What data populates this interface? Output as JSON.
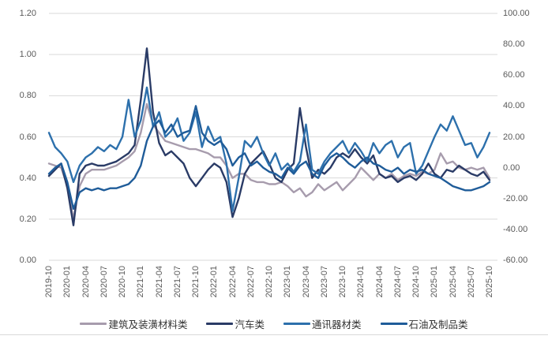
{
  "chart": {
    "grid_color": "#D9D9D9",
    "axis_label_color": "#595959",
    "legend_text_color": "#333333",
    "background": "#ffffff",
    "bottom_border_color": "#D9D9D9"
  },
  "chart_data": {
    "type": "line",
    "title": "",
    "xlabel": "",
    "ylabel_left": "",
    "ylabel_right": "",
    "grid": true,
    "legend_position": "bottom",
    "x_tick_every": 3,
    "left_axis": {
      "min": 0,
      "max": 1.2,
      "step": 0.2,
      "labels": [
        "0.00",
        "0.20",
        "0.40",
        "0.60",
        "0.80",
        "1.00",
        "1.20"
      ]
    },
    "right_axis": {
      "min": -60,
      "max": 100,
      "step": 20,
      "labels": [
        "-60.00",
        "-40.00",
        "-20.00",
        "0.00",
        "20.00",
        "40.00",
        "60.00",
        "80.00",
        "100.00"
      ]
    },
    "x": [
      "2019-10",
      "2019-11",
      "2019-12",
      "2020-01",
      "2020-02",
      "2020-03",
      "2020-04",
      "2020-05",
      "2020-06",
      "2020-07",
      "2020-08",
      "2020-09",
      "2020-10",
      "2020-11",
      "2020-12",
      "2021-01",
      "2021-02",
      "2021-03",
      "2021-04",
      "2021-05",
      "2021-06",
      "2021-07",
      "2021-08",
      "2021-09",
      "2021-10",
      "2021-11",
      "2021-12",
      "2022-01",
      "2022-02",
      "2022-03",
      "2022-04",
      "2022-05",
      "2022-06",
      "2022-07",
      "2022-08",
      "2022-09",
      "2022-10",
      "2022-11",
      "2022-12",
      "2023-01",
      "2023-02",
      "2023-03",
      "2023-04",
      "2023-05",
      "2023-06",
      "2023-07",
      "2023-08",
      "2023-09",
      "2023-10",
      "2023-11",
      "2023-12",
      "2024-01",
      "2024-02",
      "2024-03",
      "2024-04",
      "2024-05",
      "2024-06",
      "2024-07",
      "2024-08",
      "2024-09",
      "2024-10",
      "2024-11",
      "2024-12",
      "2025-01",
      "2025-02",
      "2025-03",
      "2025-04",
      "2025-05",
      "2025-06",
      "2025-07",
      "2025-08",
      "2025-09",
      "2025-10"
    ],
    "series": [
      {
        "name": "建筑及装潢材料类",
        "color": "#A79CAD",
        "values": [
          0.47,
          0.46,
          0.45,
          0.36,
          0.2,
          0.36,
          0.42,
          0.44,
          0.44,
          0.44,
          0.45,
          0.46,
          0.48,
          0.5,
          0.53,
          0.62,
          0.76,
          0.66,
          0.62,
          0.58,
          0.57,
          0.56,
          0.55,
          0.54,
          0.54,
          0.53,
          0.52,
          0.5,
          0.5,
          0.46,
          0.4,
          0.42,
          0.42,
          0.39,
          0.38,
          0.38,
          0.37,
          0.37,
          0.38,
          0.36,
          0.33,
          0.35,
          0.31,
          0.33,
          0.37,
          0.34,
          0.36,
          0.38,
          0.34,
          0.37,
          0.4,
          0.45,
          0.42,
          0.39,
          0.42,
          0.4,
          0.42,
          0.39,
          0.41,
          0.42,
          0.41,
          0.43,
          0.42,
          0.44,
          0.52,
          0.47,
          0.48,
          0.45,
          0.44,
          0.45,
          0.44,
          0.45,
          0.4
        ]
      },
      {
        "name": "汽车类",
        "color": "#2A3B66",
        "values": [
          0.41,
          0.44,
          0.47,
          0.35,
          0.17,
          0.42,
          0.46,
          0.47,
          0.46,
          0.46,
          0.47,
          0.48,
          0.5,
          0.52,
          0.56,
          0.78,
          1.03,
          0.72,
          0.57,
          0.51,
          0.53,
          0.5,
          0.47,
          0.4,
          0.36,
          0.4,
          0.44,
          0.47,
          0.45,
          0.38,
          0.21,
          0.3,
          0.42,
          0.47,
          0.5,
          0.53,
          0.47,
          0.4,
          0.38,
          0.44,
          0.47,
          0.74,
          0.55,
          0.4,
          0.44,
          0.42,
          0.45,
          0.5,
          0.52,
          0.5,
          0.54,
          0.5,
          0.47,
          0.51,
          0.42,
          0.4,
          0.41,
          0.38,
          0.4,
          0.41,
          0.39,
          0.42,
          0.47,
          0.42,
          0.4,
          0.44,
          0.43,
          0.46,
          0.44,
          0.42,
          0.41,
          0.43,
          0.39
        ]
      },
      {
        "name": "通讯器材类",
        "color": "#2D70AC",
        "values": [
          0.62,
          0.55,
          0.52,
          0.48,
          0.38,
          0.46,
          0.5,
          0.52,
          0.55,
          0.53,
          0.56,
          0.54,
          0.6,
          0.78,
          0.6,
          0.68,
          0.84,
          0.65,
          0.72,
          0.6,
          0.63,
          0.69,
          0.58,
          0.62,
          0.72,
          0.55,
          0.65,
          0.58,
          0.6,
          0.47,
          0.24,
          0.4,
          0.58,
          0.55,
          0.6,
          0.52,
          0.46,
          0.52,
          0.44,
          0.47,
          0.43,
          0.48,
          0.66,
          0.44,
          0.42,
          0.48,
          0.52,
          0.55,
          0.58,
          0.52,
          0.57,
          0.53,
          0.48,
          0.57,
          0.52,
          0.56,
          0.58,
          0.5,
          0.55,
          0.57,
          0.42,
          0.46,
          0.53,
          0.6,
          0.66,
          0.63,
          0.7,
          0.63,
          0.56,
          0.57,
          0.5,
          0.55,
          0.62
        ]
      },
      {
        "name": "石油及制品类",
        "color": "#1F5C99",
        "values": [
          0.42,
          0.45,
          0.47,
          0.38,
          0.25,
          0.33,
          0.35,
          0.34,
          0.35,
          0.34,
          0.35,
          0.35,
          0.36,
          0.37,
          0.4,
          0.46,
          0.58,
          0.65,
          0.68,
          0.62,
          0.66,
          0.6,
          0.62,
          0.63,
          0.75,
          0.62,
          0.58,
          0.56,
          0.58,
          0.54,
          0.46,
          0.5,
          0.52,
          0.46,
          0.48,
          0.45,
          0.43,
          0.42,
          0.4,
          0.45,
          0.42,
          0.46,
          0.48,
          0.42,
          0.4,
          0.46,
          0.5,
          0.52,
          0.5,
          0.47,
          0.45,
          0.48,
          0.5,
          0.47,
          0.46,
          0.44,
          0.43,
          0.45,
          0.42,
          0.44,
          0.43,
          0.44,
          0.42,
          0.41,
          0.4,
          0.38,
          0.36,
          0.35,
          0.34,
          0.34,
          0.35,
          0.36,
          0.38
        ]
      }
    ]
  }
}
